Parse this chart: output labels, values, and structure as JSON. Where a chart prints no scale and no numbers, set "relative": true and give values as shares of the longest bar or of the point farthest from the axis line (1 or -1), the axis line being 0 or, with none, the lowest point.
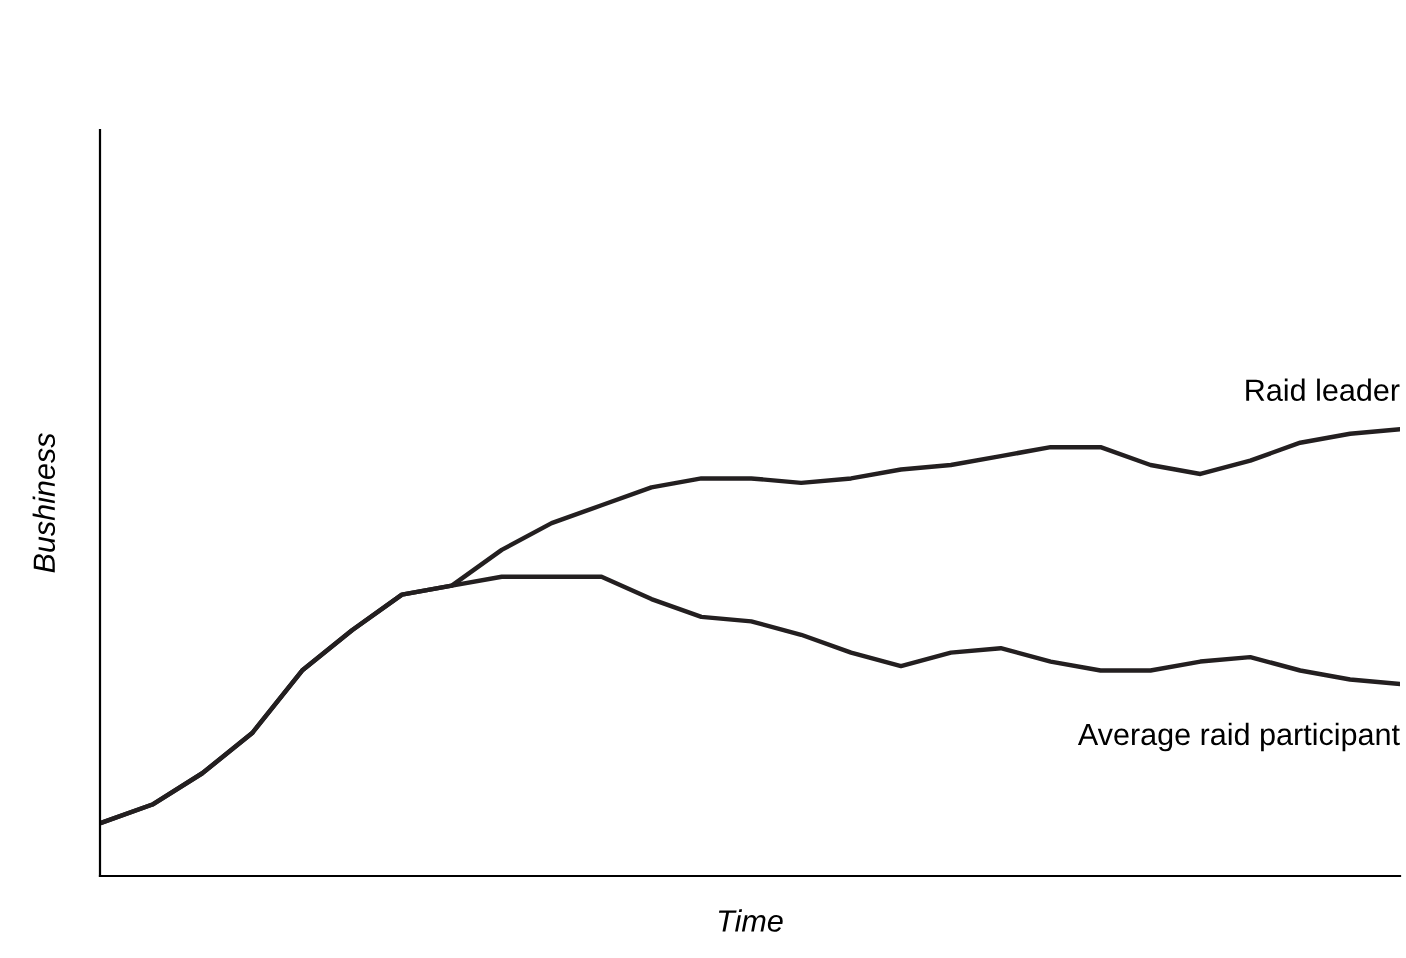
{
  "chart_data": {
    "type": "line",
    "relative": true,
    "xlabel": "Time",
    "ylabel": "Bushiness",
    "categories": [
      null,
      null,
      null,
      null,
      null,
      null,
      null,
      null,
      null,
      null,
      null,
      null,
      null,
      null,
      null,
      null,
      null,
      null,
      null,
      null,
      null,
      null,
      null,
      null,
      null,
      null,
      null
    ],
    "series": [
      {
        "name": "Raid leader",
        "color": "#231f20",
        "values": [
          0.12,
          0.16,
          0.23,
          0.32,
          0.46,
          0.55,
          0.63,
          0.65,
          0.73,
          0.79,
          0.83,
          0.87,
          0.89,
          0.89,
          0.88,
          0.89,
          0.91,
          0.92,
          0.94,
          0.96,
          0.96,
          0.92,
          0.9,
          0.93,
          0.97,
          0.99,
          1
        ]
      },
      {
        "name": "Average raid participant",
        "color": "#231f20",
        "values": [
          0.12,
          0.16,
          0.23,
          0.32,
          0.46,
          0.55,
          0.63,
          0.65,
          0.67,
          0.67,
          0.67,
          0.62,
          0.58,
          0.57,
          0.54,
          0.5,
          0.47,
          0.5,
          0.51,
          0.48,
          0.46,
          0.46,
          0.48,
          0.49,
          0.46,
          0.44,
          0.43
        ]
      }
    ],
    "legend": false,
    "marker": "none",
    "line_style": "solid"
  }
}
